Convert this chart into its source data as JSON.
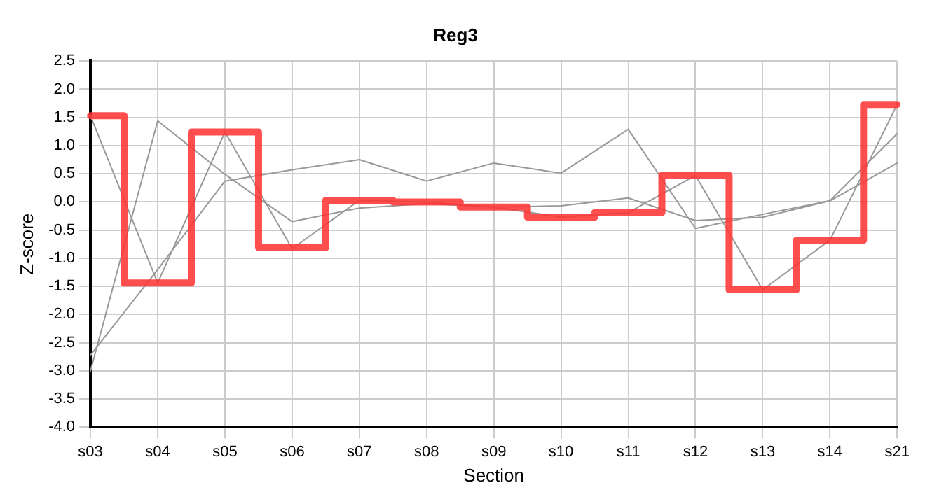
{
  "chart_data": {
    "type": "line",
    "title": "Reg3",
    "xlabel": "Section",
    "ylabel": "Z-score",
    "categories": [
      "s03",
      "s04",
      "s05",
      "s06",
      "s07",
      "s08",
      "s09",
      "s10",
      "s11",
      "s12",
      "s13",
      "s14",
      "s21"
    ],
    "series": [
      {
        "color": "#999999",
        "values": [
          1.53,
          -1.44,
          1.24,
          -0.83,
          0.03,
          0.0,
          -0.09,
          -0.27,
          -0.19,
          0.47,
          -1.56,
          -0.68,
          1.73
        ]
      },
      {
        "color": "#999999",
        "values": [
          -3.0,
          1.44,
          0.49,
          -0.35,
          -0.11,
          -0.03,
          -0.09,
          -0.07,
          0.07,
          -0.33,
          -0.27,
          0.02,
          1.21
        ]
      },
      {
        "color": "#999999",
        "values": [
          -2.72,
          -1.2,
          0.37,
          0.57,
          0.75,
          0.37,
          0.69,
          0.51,
          1.29,
          -0.47,
          -0.22,
          0.02,
          0.69
        ]
      },
      {
        "type": "step",
        "color": "#ff3333",
        "values": [
          1.53,
          -1.44,
          1.24,
          -0.81,
          0.03,
          0.0,
          -0.09,
          -0.27,
          -0.19,
          0.47,
          -1.56,
          -0.68,
          1.73
        ]
      }
    ],
    "ylim": [
      -4.0,
      2.5
    ],
    "yticks": [
      {
        "value": -4,
        "label": "-4.0"
      },
      -3.5,
      {
        "value": -3,
        "label": "-3.0"
      },
      -2.5,
      {
        "value": -2,
        "label": "-2.0"
      },
      -1.5,
      {
        "value": -1,
        "label": "-1.0"
      },
      -0.5,
      {
        "value": 0,
        "label": "0.0"
      },
      0.5,
      {
        "value": 1,
        "label": "1.0"
      },
      1.5,
      {
        "value": 2,
        "label": "2.0"
      },
      2.5
    ],
    "grid": true,
    "legend": false,
    "marker": "none",
    "line_style": "solid"
  }
}
